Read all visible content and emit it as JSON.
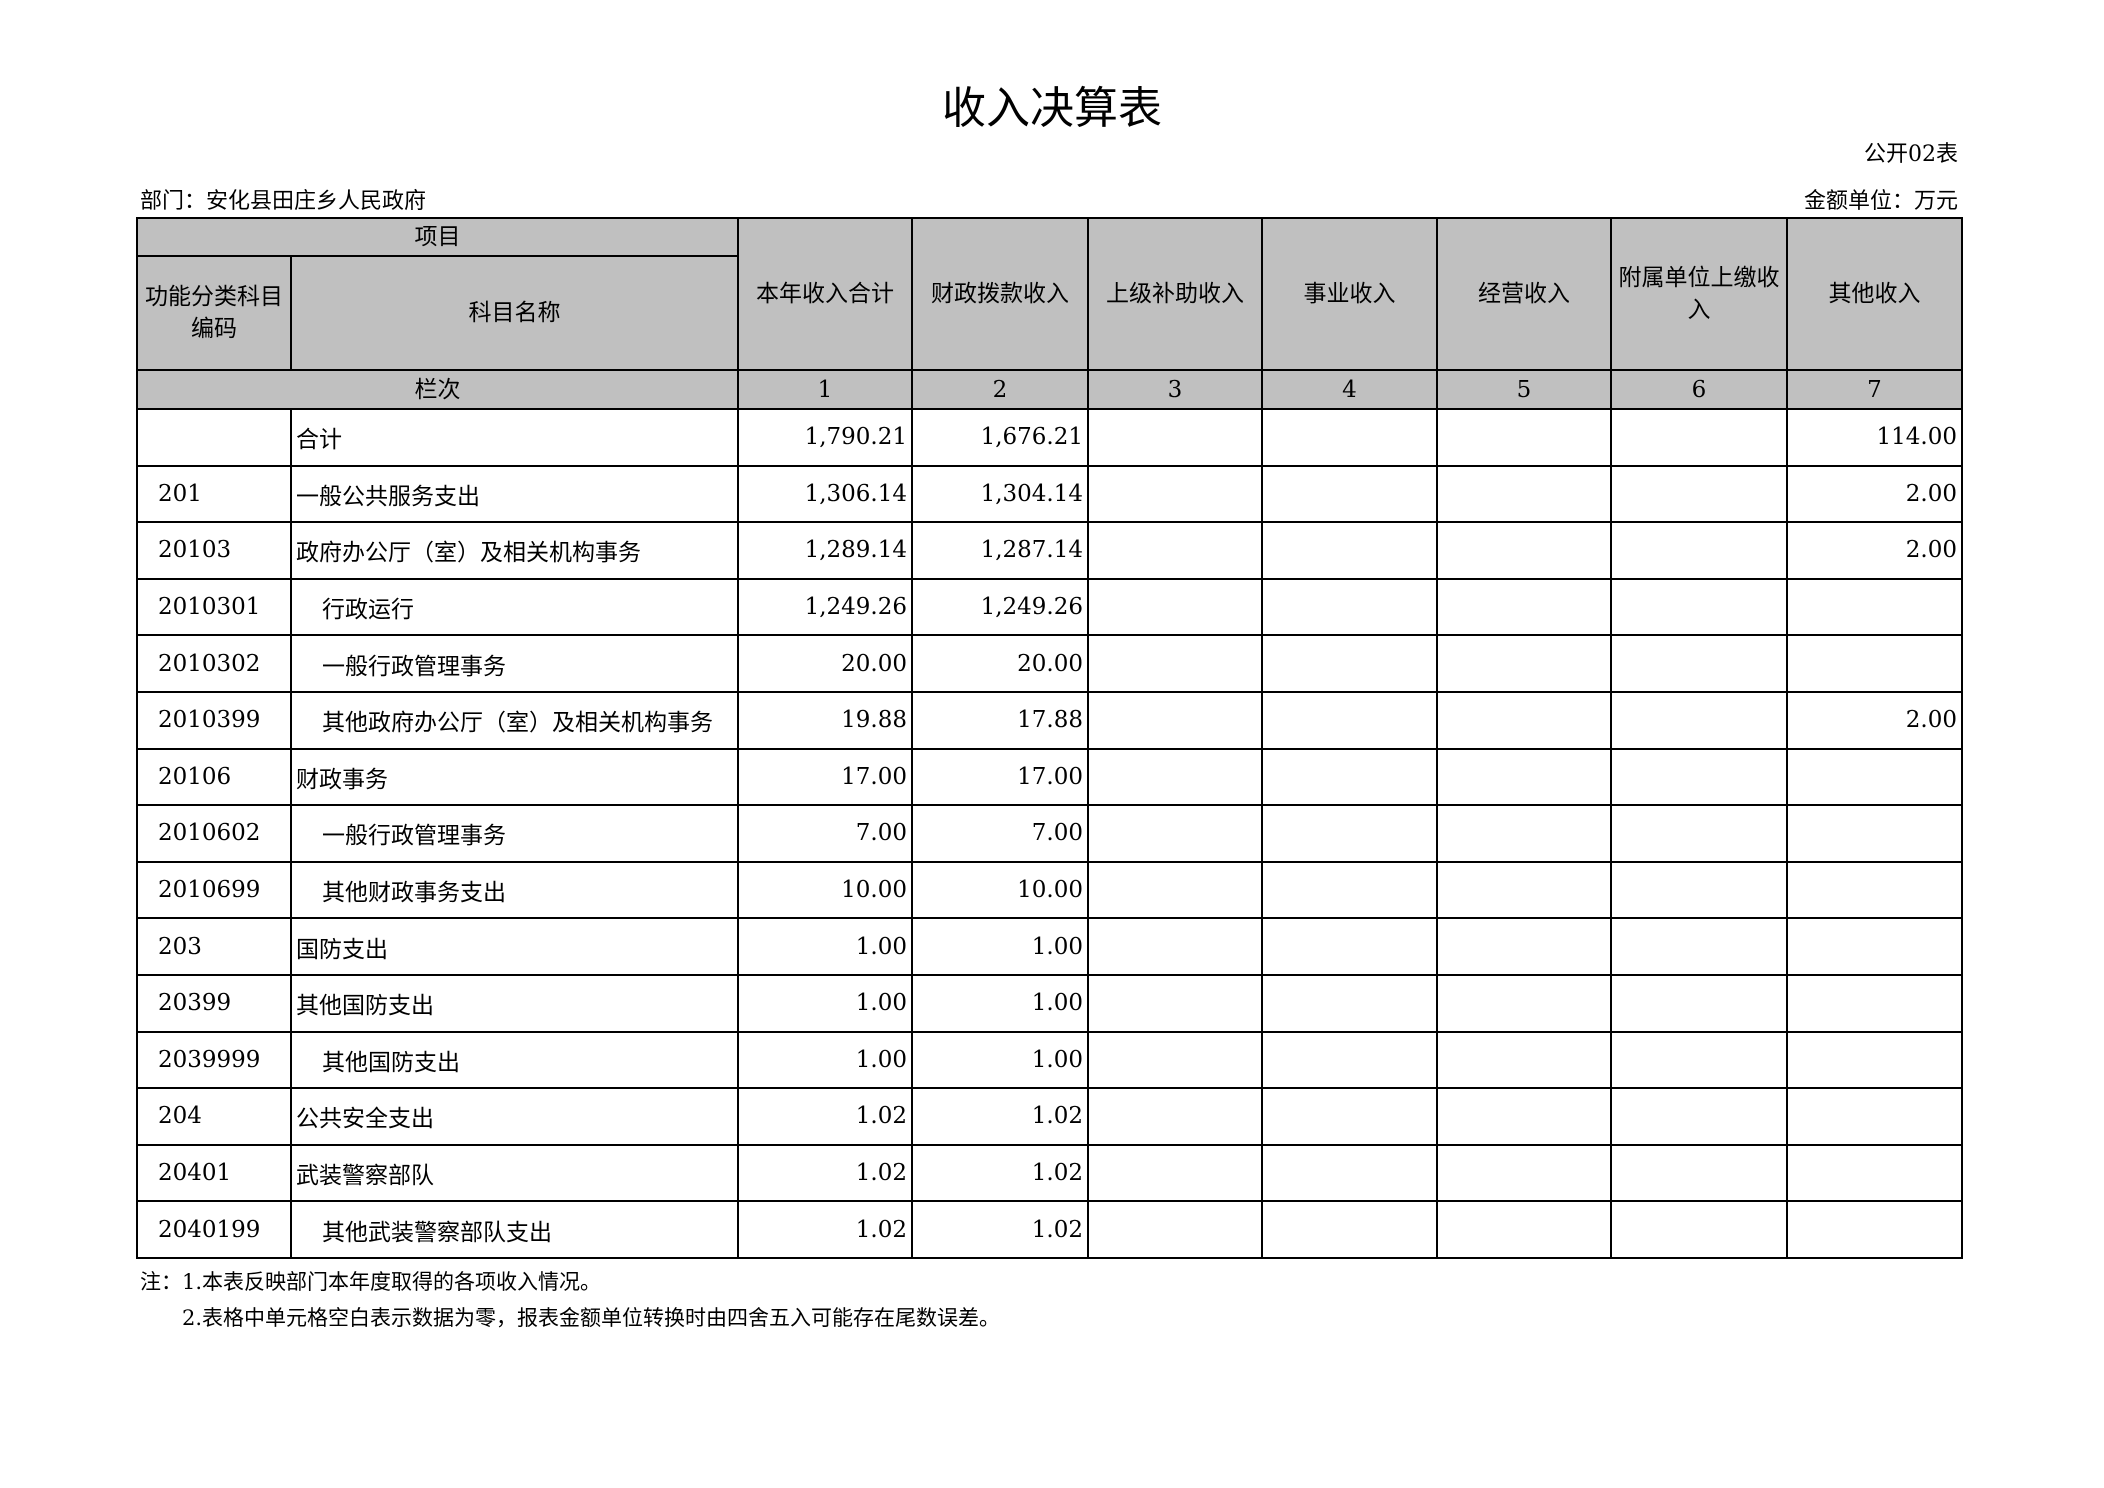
{
  "title": "收入决算表",
  "table_code": "公开02表",
  "department": "部门：安化县田庄乡人民政府",
  "unit": "金额单位：万元",
  "header": {
    "item": "项目",
    "code": "功能分类科目编码",
    "name": "科目名称",
    "columns": [
      "本年收入合计",
      "财政拨款收入",
      "上级补助收入",
      "事业收入",
      "经营收入",
      "附属单位上缴收入",
      "其他收入"
    ],
    "row_index_label": "栏次",
    "column_numbers": [
      "1",
      "2",
      "3",
      "4",
      "5",
      "6",
      "7"
    ]
  },
  "rows": [
    {
      "code": "",
      "name": "合计",
      "indent": false,
      "values": [
        "1,790.21",
        "1,676.21",
        "",
        "",
        "",
        "",
        "114.00"
      ]
    },
    {
      "code": "201",
      "name": "一般公共服务支出",
      "indent": false,
      "values": [
        "1,306.14",
        "1,304.14",
        "",
        "",
        "",
        "",
        "2.00"
      ]
    },
    {
      "code": "20103",
      "name": "政府办公厅（室）及相关机构事务",
      "indent": false,
      "values": [
        "1,289.14",
        "1,287.14",
        "",
        "",
        "",
        "",
        "2.00"
      ]
    },
    {
      "code": "2010301",
      "name": "行政运行",
      "indent": true,
      "values": [
        "1,249.26",
        "1,249.26",
        "",
        "",
        "",
        "",
        ""
      ]
    },
    {
      "code": "2010302",
      "name": "一般行政管理事务",
      "indent": true,
      "values": [
        "20.00",
        "20.00",
        "",
        "",
        "",
        "",
        ""
      ]
    },
    {
      "code": "2010399",
      "name": "其他政府办公厅（室）及相关机构事务",
      "indent": true,
      "values": [
        "19.88",
        "17.88",
        "",
        "",
        "",
        "",
        "2.00"
      ]
    },
    {
      "code": "20106",
      "name": "财政事务",
      "indent": false,
      "values": [
        "17.00",
        "17.00",
        "",
        "",
        "",
        "",
        ""
      ]
    },
    {
      "code": "2010602",
      "name": "一般行政管理事务",
      "indent": true,
      "values": [
        "7.00",
        "7.00",
        "",
        "",
        "",
        "",
        ""
      ]
    },
    {
      "code": "2010699",
      "name": "其他财政事务支出",
      "indent": true,
      "values": [
        "10.00",
        "10.00",
        "",
        "",
        "",
        "",
        ""
      ]
    },
    {
      "code": "203",
      "name": "国防支出",
      "indent": false,
      "values": [
        "1.00",
        "1.00",
        "",
        "",
        "",
        "",
        ""
      ]
    },
    {
      "code": "20399",
      "name": "其他国防支出",
      "indent": false,
      "values": [
        "1.00",
        "1.00",
        "",
        "",
        "",
        "",
        ""
      ]
    },
    {
      "code": "2039999",
      "name": "其他国防支出",
      "indent": true,
      "values": [
        "1.00",
        "1.00",
        "",
        "",
        "",
        "",
        ""
      ]
    },
    {
      "code": "204",
      "name": "公共安全支出",
      "indent": false,
      "values": [
        "1.02",
        "1.02",
        "",
        "",
        "",
        "",
        ""
      ]
    },
    {
      "code": "20401",
      "name": "武装警察部队",
      "indent": false,
      "values": [
        "1.02",
        "1.02",
        "",
        "",
        "",
        "",
        ""
      ]
    },
    {
      "code": "2040199",
      "name": "其他武装警察部队支出",
      "indent": true,
      "values": [
        "1.02",
        "1.02",
        "",
        "",
        "",
        "",
        ""
      ]
    }
  ],
  "notes": [
    "注：1.本表反映部门本年度取得的各项收入情况。",
    "2.表格中单元格空白表示数据为零，报表金额单位转换时由四舍五入可能存在尾数误差。"
  ],
  "colors": {
    "header_bg": "#c0c0c0",
    "border": "#000000"
  }
}
